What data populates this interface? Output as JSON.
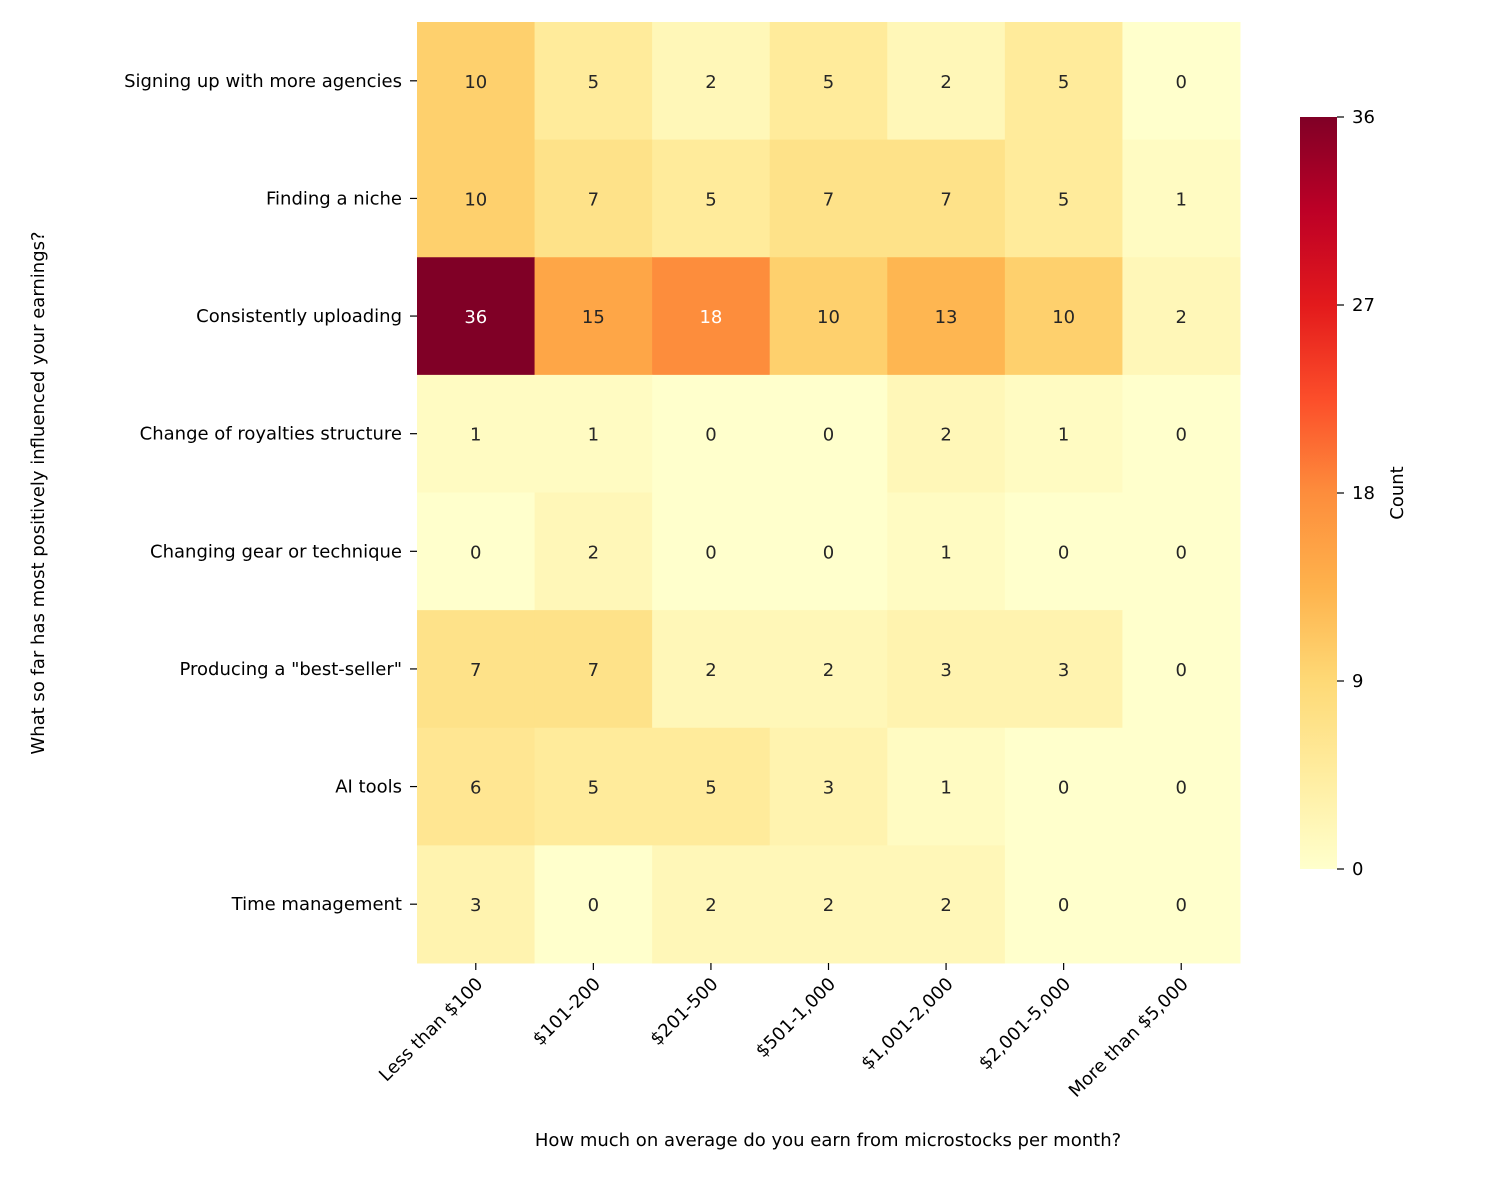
{
  "chart_data": {
    "type": "heatmap",
    "title": "",
    "xlabel": "How much on average do you earn from microstocks per month?",
    "ylabel": "What so far has most positively influenced your earnings?",
    "x_categories": [
      "Less than $100",
      "$101-200",
      "$201-500",
      "$501-1,000",
      "$1,001-2,000",
      "$2,001-5,000",
      "More than $5,000"
    ],
    "y_categories": [
      "Signing up with more agencies",
      "Finding a niche",
      "Consistently uploading",
      "Change of royalties structure",
      "Changing gear or technique",
      "Producing a \"best-seller\"",
      "AI tools",
      "Time management"
    ],
    "values": [
      [
        10,
        5,
        2,
        5,
        2,
        5,
        0
      ],
      [
        10,
        7,
        5,
        7,
        7,
        5,
        1
      ],
      [
        36,
        15,
        18,
        10,
        13,
        10,
        2
      ],
      [
        1,
        1,
        0,
        0,
        2,
        1,
        0
      ],
      [
        0,
        2,
        0,
        0,
        1,
        0,
        0
      ],
      [
        7,
        7,
        2,
        2,
        3,
        3,
        0
      ],
      [
        6,
        5,
        5,
        3,
        1,
        0,
        0
      ],
      [
        3,
        0,
        2,
        2,
        2,
        0,
        0
      ]
    ],
    "colormap": "YlOrRd",
    "vmin": 0,
    "vmax": 36,
    "annotated": true,
    "colorbar": {
      "label": "Count",
      "ticks": [
        0,
        9,
        18,
        27,
        36
      ],
      "placement": "right"
    }
  }
}
